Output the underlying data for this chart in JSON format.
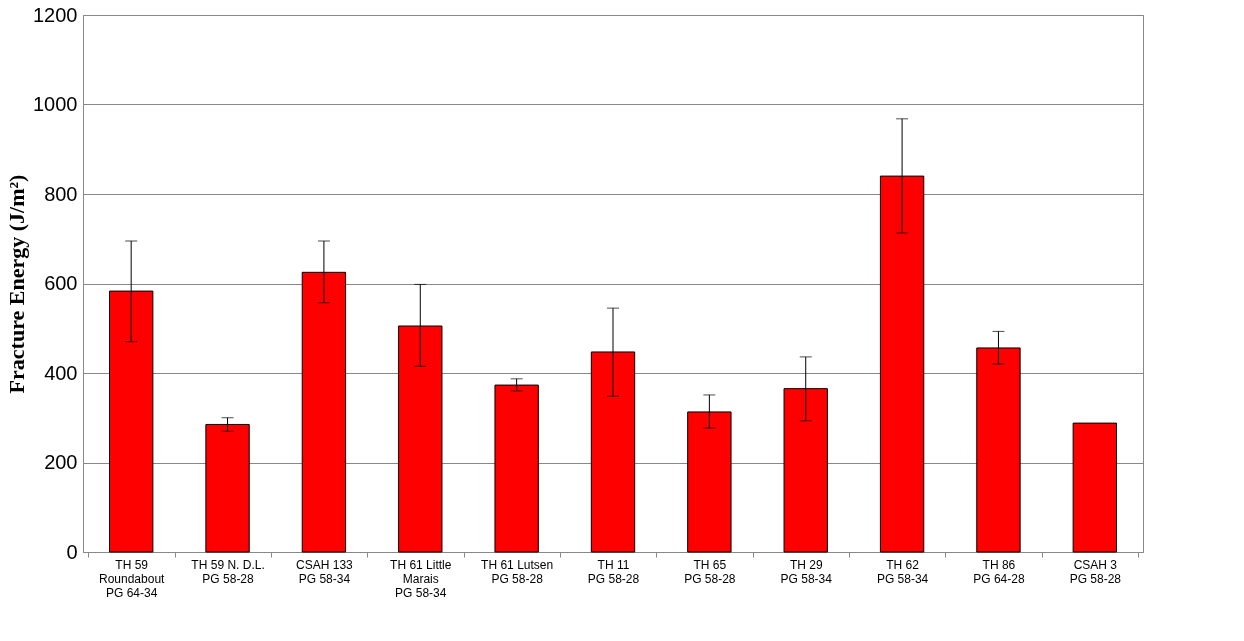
{
  "chart_data": {
    "type": "bar",
    "ylabel": "Fracture Energy (J/m²)",
    "categories": [
      "TH 59\nRoundabout\nPG 64-34",
      "TH 59 N. D.L.\nPG 58-28",
      "CSAH 133\nPG 58-34",
      "TH 61 Little\nMarais\nPG 58-34",
      "TH 61 Lutsen\nPG 58-28",
      "TH 11\nPG 58-28",
      "TH 65\nPG 58-28",
      "TH 29\nPG 58-34",
      "TH 62\nPG 58-34",
      "TH 86\nPG 64-28",
      "CSAH 3\nPG 58-28"
    ],
    "values": [
      583,
      285,
      625,
      505,
      373,
      447,
      313,
      365,
      840,
      456,
      288
    ],
    "errors": [
      [
        470,
        695
      ],
      [
        270,
        300
      ],
      [
        557,
        695
      ],
      [
        415,
        598
      ],
      [
        360,
        387
      ],
      [
        348,
        545
      ],
      [
        277,
        351
      ],
      [
        293,
        436
      ],
      [
        713,
        968
      ],
      [
        420,
        493
      ],
      null
    ],
    "color": "#ff0000",
    "ylim": [
      0,
      1200
    ],
    "yticks": [
      0,
      200,
      400,
      600,
      800,
      1000,
      1200
    ],
    "grid": "y"
  }
}
